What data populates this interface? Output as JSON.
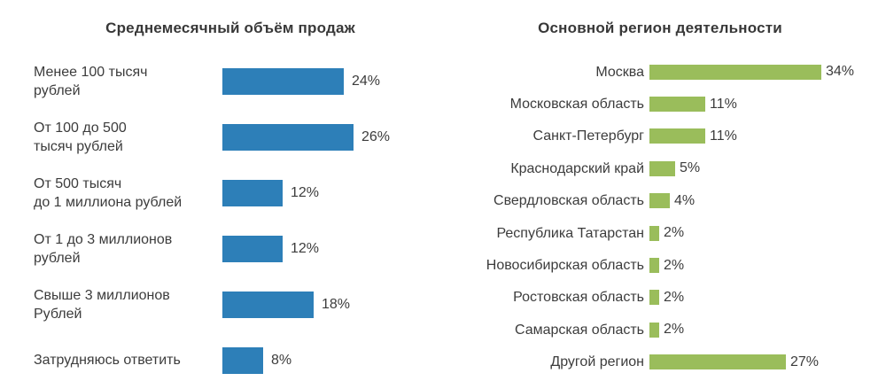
{
  "page": {
    "background": "#ffffff",
    "text_color": "#3c3c3c"
  },
  "chart_data": [
    {
      "type": "bar",
      "orientation": "horizontal",
      "title": "Среднемесячный объём продаж",
      "unit": "%",
      "bar_color": "#2d7fb8",
      "xlim": [
        0,
        34
      ],
      "grid": false,
      "legend": false,
      "categories": [
        "Менее 100 тысяч рублей",
        "От 100 до 500 тысяч рублей",
        "От 500 тысяч до 1 миллиона рублей",
        "От 1 до 3 миллионов рублей",
        "Свыше 3 миллионов Рублей",
        "Затрудняюсь ответить"
      ],
      "display_labels": [
        "Менее 100 тысяч\nрублей",
        "От 100 до 500\nтысяч рублей",
        "От 500 тысяч\nдо 1 миллиона рублей",
        "От 1 до 3 миллионов\nрублей",
        "Свыше 3 миллионов\nРублей",
        "Затрудняюсь ответить"
      ],
      "values": [
        24,
        26,
        12,
        12,
        18,
        8
      ],
      "value_labels": [
        "24%",
        "26%",
        "12%",
        "12%",
        "18%",
        "8%"
      ]
    },
    {
      "type": "bar",
      "orientation": "horizontal",
      "title": "Основной регион деятельности",
      "unit": "%",
      "bar_color": "#9abd5b",
      "xlim": [
        0,
        34
      ],
      "grid": false,
      "legend": false,
      "categories": [
        "Москва",
        "Московская область",
        "Санкт-Петербург",
        "Краснодарский край",
        "Свердловская область",
        "Республика Татарстан",
        "Новосибирская область",
        "Ростовская область",
        "Самарская область",
        "Другой регион"
      ],
      "display_labels": [
        "Москва",
        "Московская область",
        "Санкт-Петербург",
        "Краснодарский край",
        "Свердловская область",
        "Республика Татарстан",
        "Новосибирская область",
        "Ростовская область",
        "Самарская область",
        "Другой регион"
      ],
      "values": [
        34,
        11,
        11,
        5,
        4,
        2,
        2,
        2,
        2,
        27
      ],
      "value_labels": [
        "34%",
        "11%",
        "11%",
        "5%",
        "4%",
        "2%",
        "2%",
        "2%",
        "2%",
        "27%"
      ]
    }
  ]
}
